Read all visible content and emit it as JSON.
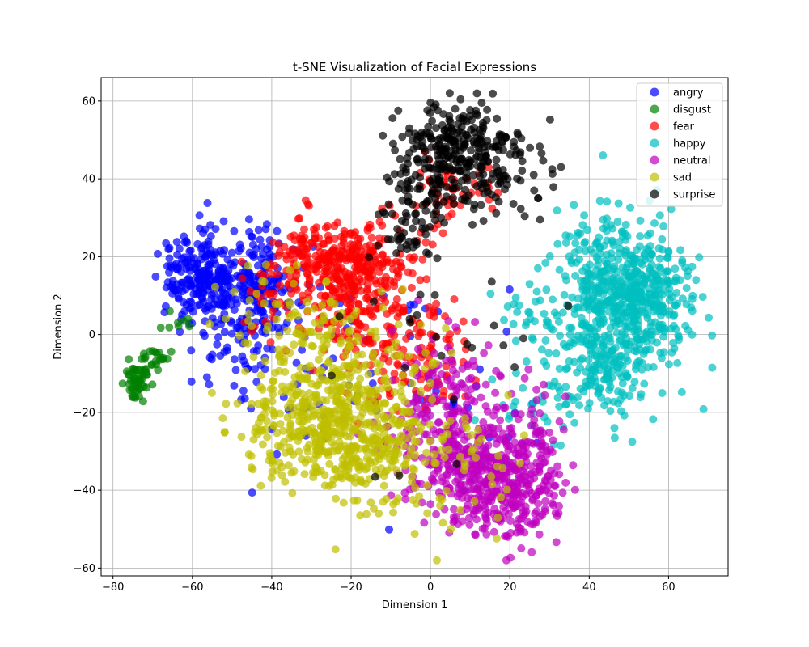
{
  "chart_data": {
    "type": "scatter",
    "title": "t-SNE Visualization of Facial Expressions",
    "xlabel": "Dimension 1",
    "ylabel": "Dimension 2",
    "xlim": [
      -83,
      75
    ],
    "ylim": [
      -62,
      66
    ],
    "xticks": [
      -80,
      -60,
      -40,
      -20,
      0,
      20,
      40,
      60
    ],
    "yticks": [
      -60,
      -40,
      -20,
      0,
      20,
      40,
      60
    ],
    "grid": true,
    "legend_position": "top-right",
    "marker_alpha": 0.7,
    "series": [
      {
        "name": "angry",
        "color": "#0000ff",
        "clusters": [
          {
            "cx": -58,
            "cy": 15,
            "sx": 5,
            "sy": 6,
            "n": 220
          },
          {
            "cx": -48,
            "cy": 5,
            "sx": 6,
            "sy": 8,
            "n": 150
          },
          {
            "cx": -42,
            "cy": 16,
            "sx": 4,
            "sy": 6,
            "n": 80
          },
          {
            "cx": -30,
            "cy": -10,
            "sx": 15,
            "sy": 12,
            "n": 50
          },
          {
            "cx": 0,
            "cy": -20,
            "sx": 15,
            "sy": 15,
            "n": 30
          }
        ]
      },
      {
        "name": "disgust",
        "color": "#008000",
        "clusters": [
          {
            "cx": -74,
            "cy": -12,
            "sx": 1.5,
            "sy": 2,
            "n": 45
          },
          {
            "cx": -70,
            "cy": -6,
            "sx": 2.5,
            "sy": 2,
            "n": 25
          },
          {
            "cx": -63,
            "cy": 4,
            "sx": 1.5,
            "sy": 1.5,
            "n": 8
          }
        ]
      },
      {
        "name": "fear",
        "color": "#ff0000",
        "clusters": [
          {
            "cx": -20,
            "cy": 18,
            "sx": 7,
            "sy": 6,
            "n": 220
          },
          {
            "cx": -30,
            "cy": 20,
            "sx": 6,
            "sy": 4,
            "n": 80
          },
          {
            "cx": -15,
            "cy": 5,
            "sx": 8,
            "sy": 8,
            "n": 150
          },
          {
            "cx": -5,
            "cy": -8,
            "sx": 8,
            "sy": 8,
            "n": 80
          },
          {
            "cx": 5,
            "cy": 36,
            "sx": 5,
            "sy": 5,
            "n": 50
          },
          {
            "cx": -40,
            "cy": 10,
            "sx": 5,
            "sy": 6,
            "n": 40
          }
        ]
      },
      {
        "name": "happy",
        "color": "#00bfbf",
        "clusters": [
          {
            "cx": 48,
            "cy": 12,
            "sx": 8,
            "sy": 9,
            "n": 450
          },
          {
            "cx": 42,
            "cy": -8,
            "sx": 6,
            "sy": 7,
            "n": 160
          },
          {
            "cx": 56,
            "cy": 5,
            "sx": 5,
            "sy": 8,
            "n": 120
          },
          {
            "cx": 24,
            "cy": 6,
            "sx": 5,
            "sy": 4,
            "n": 30
          },
          {
            "cx": 28,
            "cy": -20,
            "sx": 6,
            "sy": 5,
            "n": 30
          }
        ]
      },
      {
        "name": "neutral",
        "color": "#bf00bf",
        "clusters": [
          {
            "cx": 14,
            "cy": -36,
            "sx": 8,
            "sy": 7,
            "n": 300
          },
          {
            "cx": 22,
            "cy": -42,
            "sx": 5,
            "sy": 6,
            "n": 120
          },
          {
            "cx": 5,
            "cy": -25,
            "sx": 8,
            "sy": 8,
            "n": 150
          },
          {
            "cx": 26,
            "cy": -28,
            "sx": 4,
            "sy": 6,
            "n": 60
          },
          {
            "cx": 5,
            "cy": -10,
            "sx": 6,
            "sy": 6,
            "n": 50
          }
        ]
      },
      {
        "name": "sad",
        "color": "#bfbf00",
        "clusters": [
          {
            "cx": -28,
            "cy": -22,
            "sx": 9,
            "sy": 8,
            "n": 350
          },
          {
            "cx": -15,
            "cy": -28,
            "sx": 8,
            "sy": 8,
            "n": 200
          },
          {
            "cx": -20,
            "cy": -8,
            "sx": 12,
            "sy": 8,
            "n": 120
          },
          {
            "cx": -35,
            "cy": 5,
            "sx": 12,
            "sy": 6,
            "n": 60
          },
          {
            "cx": 5,
            "cy": -35,
            "sx": 10,
            "sy": 8,
            "n": 60
          }
        ]
      },
      {
        "name": "surprise",
        "color": "#000000",
        "clusters": [
          {
            "cx": 7,
            "cy": 48,
            "sx": 7,
            "sy": 6,
            "n": 250
          },
          {
            "cx": 0,
            "cy": 36,
            "sx": 5,
            "sy": 5,
            "n": 60
          },
          {
            "cx": 18,
            "cy": 40,
            "sx": 5,
            "sy": 5,
            "n": 60
          },
          {
            "cx": -5,
            "cy": 25,
            "sx": 5,
            "sy": 3,
            "n": 30
          },
          {
            "cx": 0,
            "cy": 0,
            "sx": 20,
            "sy": 15,
            "n": 25
          }
        ]
      }
    ]
  }
}
